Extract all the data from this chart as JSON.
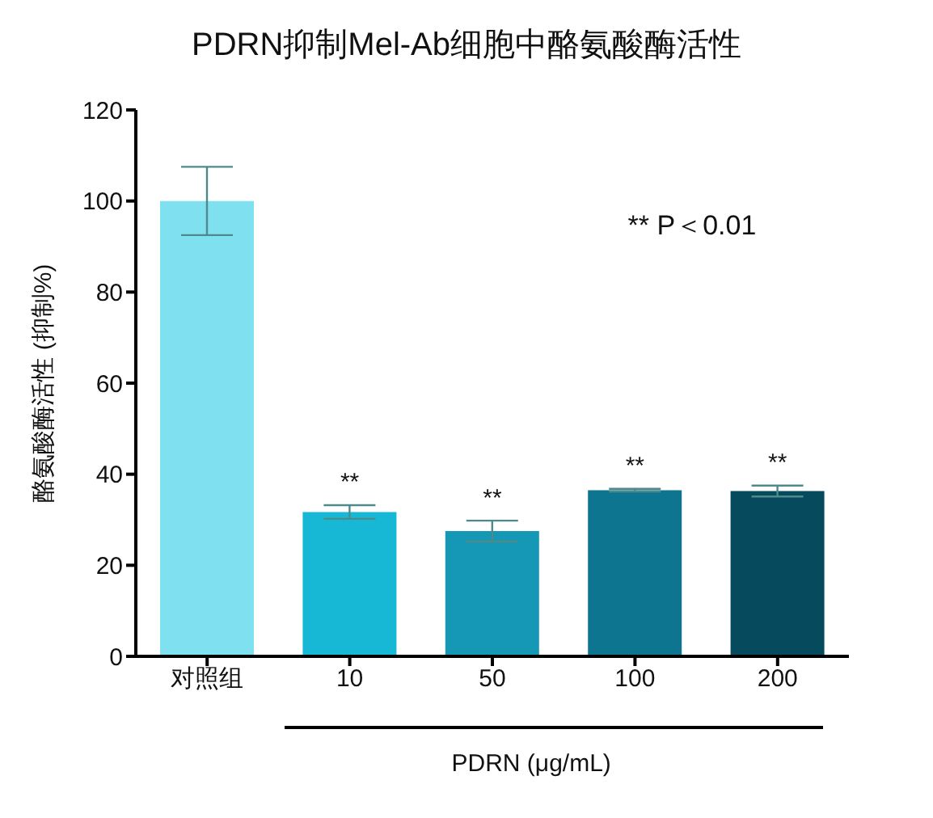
{
  "chart_data": {
    "type": "bar",
    "title": "PDRN抑制Mel-Ab细胞中酪氨酸酶活性",
    "xlabel": "PDRN (μg/mL)",
    "ylabel": "酪氨酸酶活性 (抑制%)",
    "categories": [
      "对照组",
      "10",
      "50",
      "100",
      "200"
    ],
    "values": [
      100,
      31.7,
      27.5,
      36.5,
      36.3
    ],
    "errors": [
      7.5,
      1.5,
      2.3,
      0.3,
      1.2
    ],
    "colors": [
      "#7fe0f0",
      "#17b8d6",
      "#1598b5",
      "#0e7590",
      "#064a5e"
    ],
    "ylim": [
      0,
      120
    ],
    "yticks": [
      0,
      20,
      40,
      60,
      80,
      100,
      120
    ],
    "grid": false,
    "annotations": [
      {
        "text": "**",
        "x": "10",
        "y": 33.2
      },
      {
        "text": "**",
        "x": "50",
        "y": 29.8
      },
      {
        "text": "**",
        "x": "100",
        "y": 36.8
      },
      {
        "text": "**",
        "x": "200",
        "y": 37.5
      },
      "** P＜0.01"
    ]
  }
}
